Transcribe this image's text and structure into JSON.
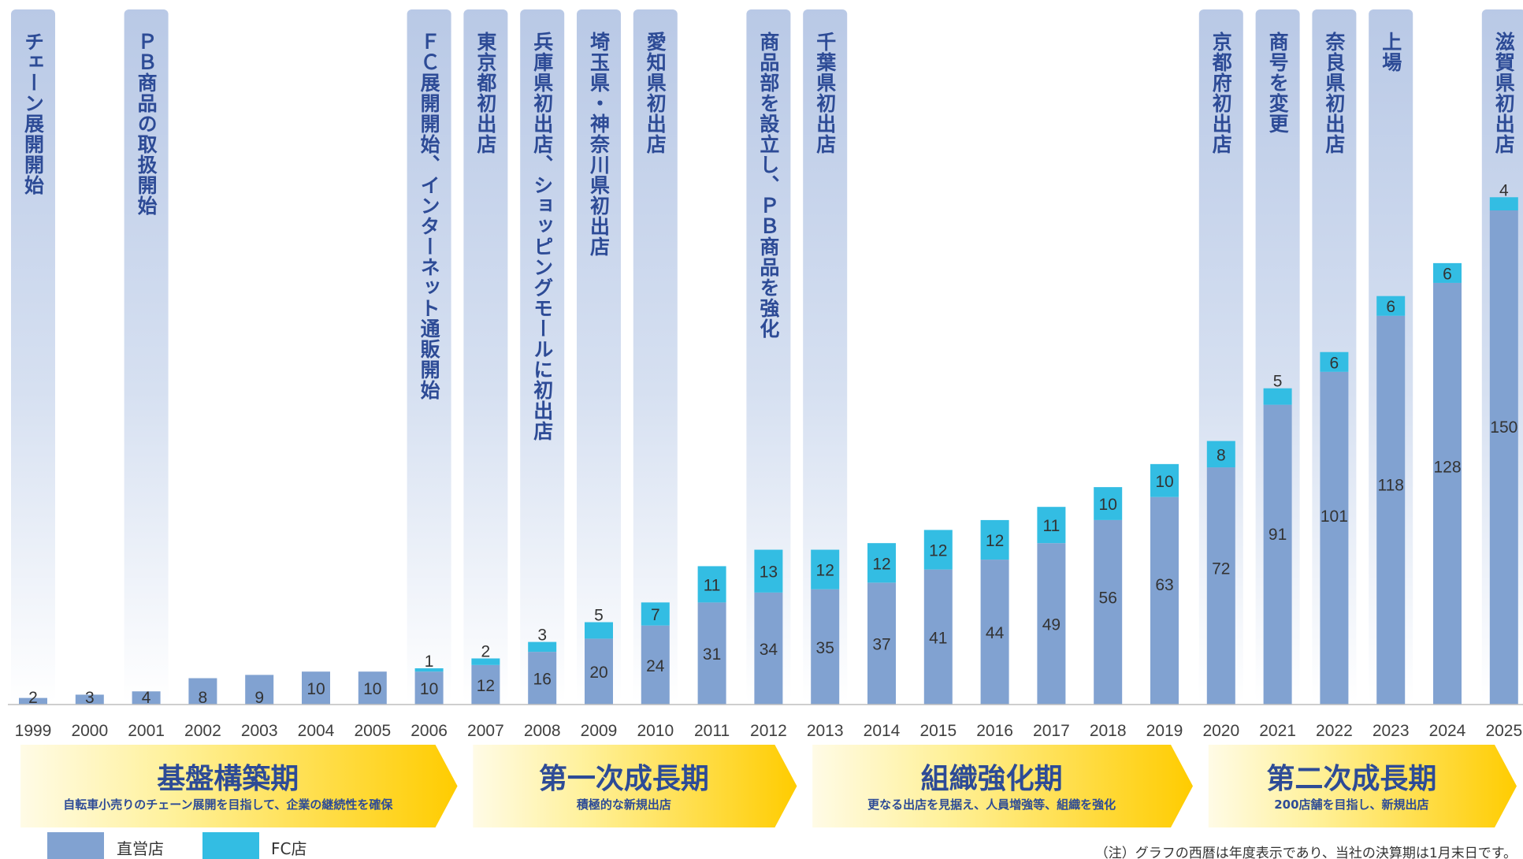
{
  "chart_data": {
    "type": "bar",
    "stacked": true,
    "categories": [
      "1999",
      "2000",
      "2001",
      "2002",
      "2003",
      "2004",
      "2005",
      "2006",
      "2007",
      "2008",
      "2009",
      "2010",
      "2011",
      "2012",
      "2013",
      "2014",
      "2015",
      "2016",
      "2017",
      "2018",
      "2019",
      "2020",
      "2021",
      "2022",
      "2023",
      "2024",
      "2025"
    ],
    "series": [
      {
        "name": "直営店",
        "color": "#81a2d1",
        "values": [
          2,
          3,
          4,
          8,
          9,
          10,
          10,
          10,
          12,
          16,
          20,
          24,
          31,
          34,
          35,
          37,
          41,
          44,
          49,
          56,
          63,
          72,
          91,
          101,
          118,
          128,
          150
        ]
      },
      {
        "name": "FC店",
        "color": "#33bde3",
        "values": [
          0,
          0,
          0,
          0,
          0,
          0,
          0,
          1,
          2,
          3,
          5,
          7,
          11,
          13,
          12,
          12,
          12,
          12,
          11,
          10,
          10,
          8,
          5,
          6,
          6,
          6,
          4
        ]
      }
    ],
    "ylim": [
      0,
      175
    ],
    "legend_position": "bottom-left",
    "annotations": [
      {
        "year": "1999",
        "text": "チェーン展開開始"
      },
      {
        "year": "2001",
        "text": "ＰＢ商品の取扱開始"
      },
      {
        "year": "2006",
        "text": "ＦＣ展開開始、インターネット通販開始"
      },
      {
        "year": "2007",
        "text": "東京都初出店"
      },
      {
        "year": "2008",
        "text": "兵庫県初出店、ショッピングモールに初出店"
      },
      {
        "year": "2009",
        "text": "埼玉県・神奈川県初出店"
      },
      {
        "year": "2010",
        "text": "愛知県初出店"
      },
      {
        "year": "2012",
        "text": "商品部を設立し、ＰＢ商品を強化"
      },
      {
        "year": "2013",
        "text": "千葉県初出店"
      },
      {
        "year": "2020",
        "text": "京都府初出店"
      },
      {
        "year": "2021",
        "text": "商号を変更"
      },
      {
        "year": "2022",
        "text": "奈良県初出店"
      },
      {
        "year": "2023",
        "text": "上場"
      },
      {
        "year": "2025",
        "text": "滋賀県初出店"
      }
    ],
    "phases": [
      {
        "title": "基盤構築期",
        "subtitle": "自転車小売りのチェーン展開を目指して、企業の継続性を確保",
        "from": "1999",
        "to": "2006"
      },
      {
        "title": "第一次成長期",
        "subtitle": "積極的な新規出店",
        "from": "2007",
        "to": "2012"
      },
      {
        "title": "組織強化期",
        "subtitle": "更なる出店を見据え、人員増強等、組織を強化",
        "from": "2013",
        "to": "2019"
      },
      {
        "title": "第二次成長期",
        "subtitle": "200店舗を目指し、新規出店",
        "from": "2020",
        "to": "2025"
      }
    ],
    "note": "（注）グラフの西暦は年度表示であり、当社の決算期は1月末日です。"
  }
}
